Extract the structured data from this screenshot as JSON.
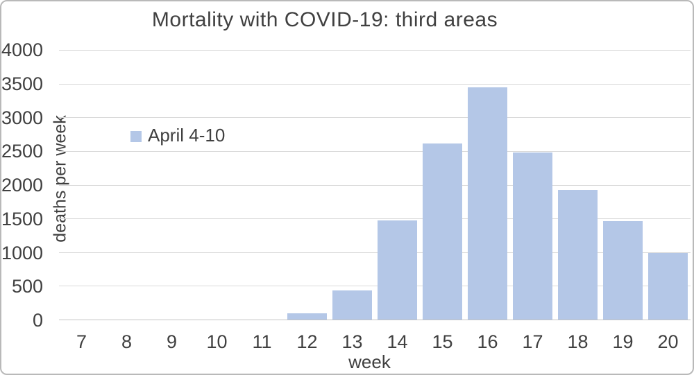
{
  "figure": {
    "title": "Mortality with COVID-19: third areas",
    "legend": {
      "label": "April 4-10"
    },
    "y_axis_title": "deaths per week",
    "x_axis_title": "week"
  },
  "colors": {
    "bar": "#b4c7e7",
    "gridline": "#d9d9d9",
    "axis_line": "#c3c3c3",
    "text": "#404040",
    "figure_border": "#b9b9b9"
  },
  "chart_data": {
    "type": "bar",
    "title": "Mortality with COVID-19: third areas",
    "categories": [
      "7",
      "8",
      "9",
      "10",
      "11",
      "12",
      "13",
      "14",
      "15",
      "16",
      "17",
      "18",
      "19",
      "20"
    ],
    "values": [
      0,
      0,
      0,
      0,
      0,
      90,
      430,
      1470,
      2610,
      3440,
      2480,
      1920,
      1460,
      990
    ],
    "series_name": "April 4-10",
    "xlabel": "week",
    "ylabel": "deaths per week",
    "ylim": [
      0,
      4000
    ],
    "ytick_step": 500,
    "grid": true,
    "legend_position": "inside upper-left",
    "bar_color": "#b4c7e7"
  }
}
